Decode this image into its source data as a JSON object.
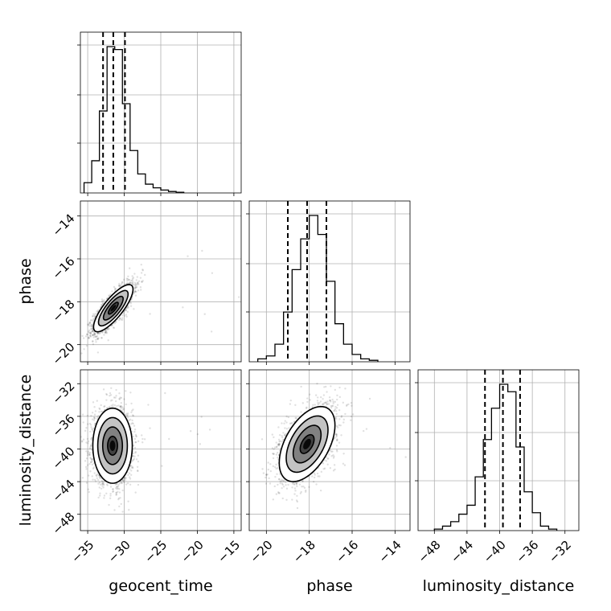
{
  "chart_data": {
    "type": "corner",
    "parameters": [
      "geocent_time",
      "phase",
      "luminosity_distance"
    ],
    "grid": true,
    "axes": {
      "geocent_time": {
        "range": [
          -36,
          -14
        ],
        "ticks": [
          -35,
          -30,
          -25,
          -20,
          -15
        ],
        "tick_labels": [
          "−35",
          "−30",
          "−25",
          "−20",
          "−15"
        ]
      },
      "phase": {
        "range": [
          -20.8,
          -13.3
        ],
        "ticks": [
          -20,
          -18,
          -16,
          -14
        ],
        "tick_labels": [
          "−20",
          "−18",
          "−16",
          "−14"
        ]
      },
      "luminosity_distance": {
        "range": [
          -50,
          -30.3
        ],
        "ticks": [
          -48,
          -44,
          -40,
          -36,
          -32
        ],
        "tick_labels": [
          "−48",
          "−44",
          "−40",
          "−36",
          "−32"
        ]
      }
    },
    "marginals": [
      {
        "parameter": "geocent_time",
        "bin_edges": [
          -35.5,
          -34.45,
          -33.4,
          -32.35,
          -31.3,
          -30.25,
          -29.2,
          -28.15,
          -27.1,
          -26.05,
          -25.0,
          -23.95,
          -22.9,
          -21.85
        ],
        "counts": [
          0.07,
          0.22,
          0.56,
          1.0,
          0.98,
          0.61,
          0.29,
          0.13,
          0.06,
          0.035,
          0.02,
          0.01,
          0.005
        ],
        "quantiles": [
          -32.9,
          -31.5,
          -29.9
        ]
      },
      {
        "parameter": "phase",
        "bin_edges": [
          -20.4,
          -20.0,
          -19.6,
          -19.2,
          -18.8,
          -18.4,
          -18.0,
          -17.6,
          -17.2,
          -16.8,
          -16.4,
          -16.0,
          -15.6,
          -15.2,
          -14.8
        ],
        "counts": [
          0.02,
          0.04,
          0.12,
          0.34,
          0.63,
          0.84,
          1.0,
          0.87,
          0.55,
          0.26,
          0.12,
          0.05,
          0.02,
          0.01
        ],
        "quantiles": [
          -19.0,
          -18.1,
          -17.2
        ]
      },
      {
        "parameter": "luminosity_distance",
        "bin_edges": [
          -48.0,
          -47.0,
          -46.0,
          -45.0,
          -44.0,
          -43.0,
          -42.0,
          -41.0,
          -40.0,
          -39.0,
          -38.0,
          -37.0,
          -36.0,
          -35.0,
          -34.0,
          -33.0
        ],
        "counts": [
          0.01,
          0.03,
          0.06,
          0.11,
          0.17,
          0.36,
          0.61,
          0.82,
          0.98,
          0.93,
          0.56,
          0.26,
          0.12,
          0.03,
          0.01
        ],
        "quantiles": [
          -41.8,
          -39.6,
          -37.5
        ]
      }
    ],
    "joint": [
      {
        "x": "geocent_time",
        "y": "phase",
        "center": [
          -31.5,
          -18.3
        ],
        "sd": [
          1.35,
          0.55
        ],
        "rho": 0.8,
        "n_points": 2200,
        "n_outliers": 10
      },
      {
        "x": "geocent_time",
        "y": "luminosity_distance",
        "center": [
          -31.6,
          -39.6
        ],
        "sd": [
          1.35,
          2.3
        ],
        "rho": 0.0,
        "n_points": 2200,
        "n_outliers": 10
      },
      {
        "x": "phase",
        "y": "luminosity_distance",
        "center": [
          -18.1,
          -39.4
        ],
        "sd": [
          0.65,
          2.3
        ],
        "rho": 0.5,
        "n_points": 2200,
        "n_outliers": 10
      }
    ],
    "contour_sigma_levels": [
      0.5,
      1.0,
      1.5,
      2.0
    ]
  }
}
